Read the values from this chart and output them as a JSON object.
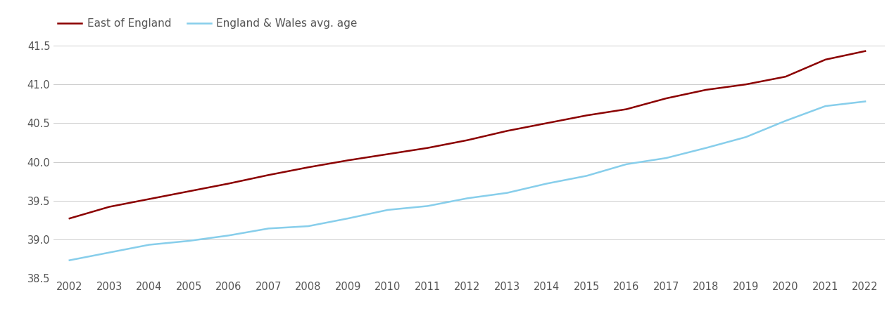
{
  "years": [
    2002,
    2003,
    2004,
    2005,
    2006,
    2007,
    2008,
    2009,
    2010,
    2011,
    2012,
    2013,
    2014,
    2015,
    2016,
    2017,
    2018,
    2019,
    2020,
    2021,
    2022
  ],
  "east_of_england": [
    39.27,
    39.42,
    39.52,
    39.62,
    39.72,
    39.83,
    39.93,
    40.02,
    40.1,
    40.18,
    40.28,
    40.4,
    40.5,
    40.6,
    40.68,
    40.82,
    40.93,
    41.0,
    41.1,
    41.32,
    41.43
  ],
  "england_wales": [
    38.73,
    38.83,
    38.93,
    38.98,
    39.05,
    39.14,
    39.17,
    39.27,
    39.38,
    39.43,
    39.53,
    39.6,
    39.72,
    39.82,
    39.97,
    40.05,
    40.18,
    40.32,
    40.53,
    40.72,
    40.78
  ],
  "east_color": "#8b0000",
  "ew_color": "#87CEEB",
  "line_width": 1.8,
  "legend_labels": [
    "East of England",
    "England & Wales avg. age"
  ],
  "ylim": [
    38.5,
    41.6
  ],
  "yticks": [
    38.5,
    39.0,
    39.5,
    40.0,
    40.5,
    41.0,
    41.5
  ],
  "background_color": "#ffffff",
  "grid_color": "#cccccc",
  "tick_label_color": "#555555",
  "font_size_tick": 10.5,
  "font_size_legend": 11
}
